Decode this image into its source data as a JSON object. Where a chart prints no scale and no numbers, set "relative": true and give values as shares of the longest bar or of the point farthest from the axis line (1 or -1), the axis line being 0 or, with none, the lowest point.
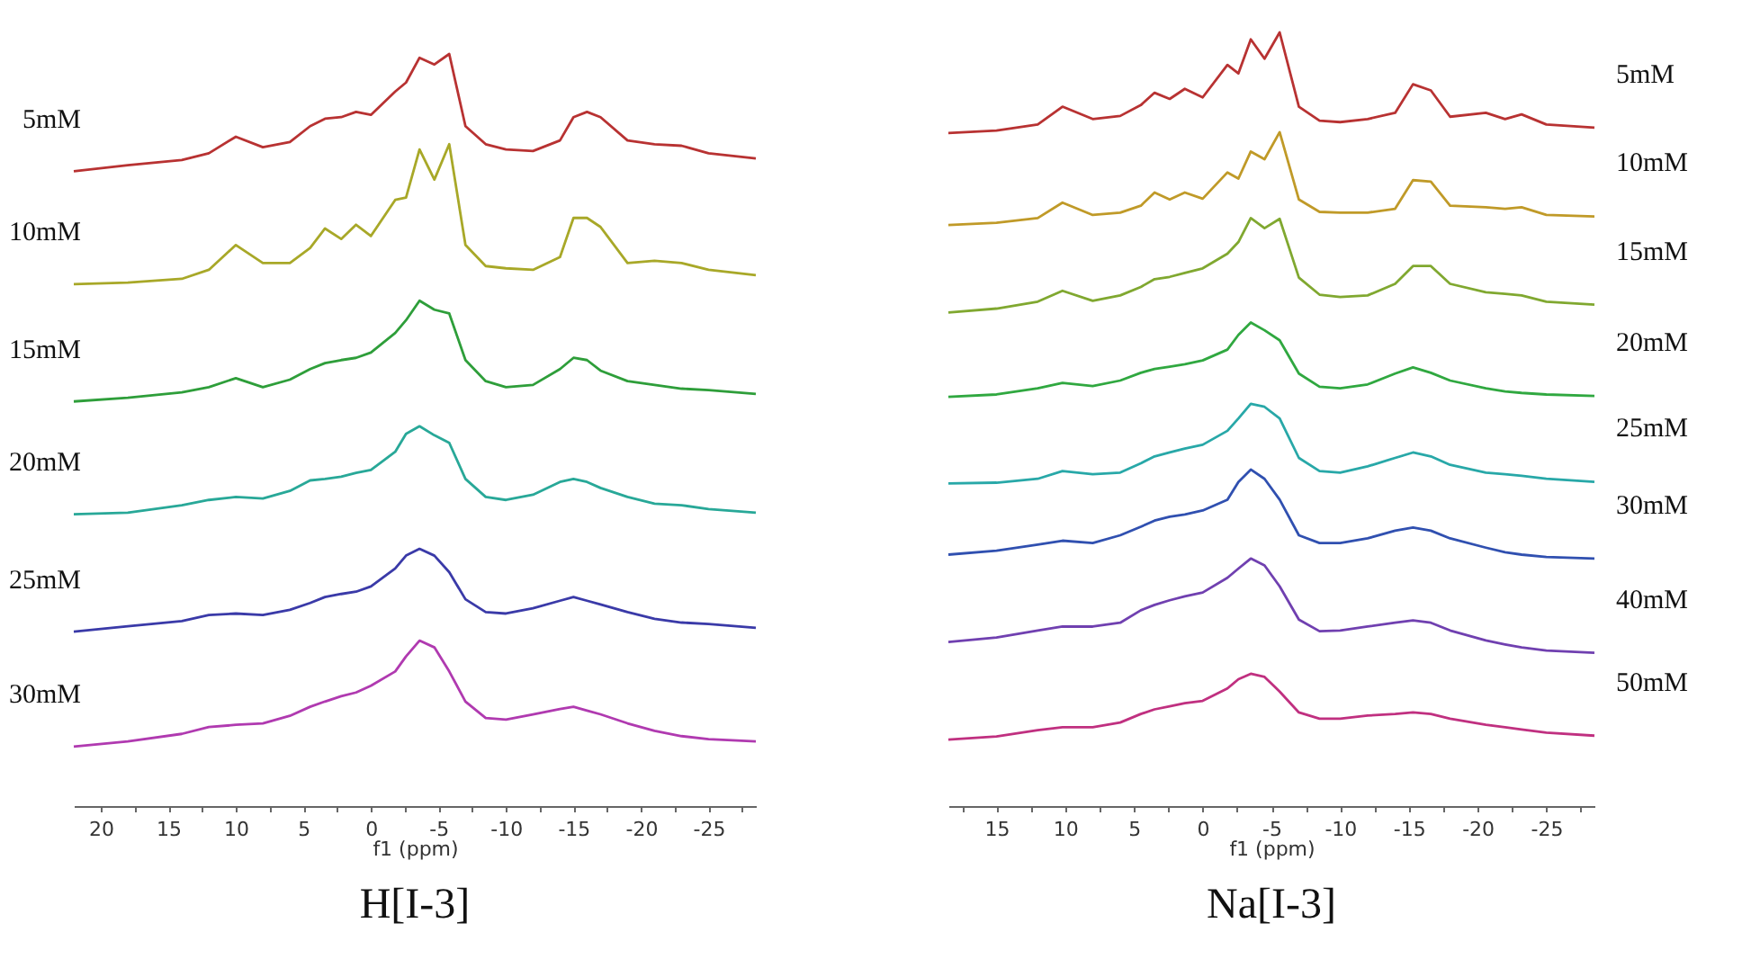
{
  "chart_data": [
    {
      "type": "line",
      "title": "H[I-3]",
      "xlabel": "f1 (ppm)",
      "relative": true,
      "xlim": [
        22,
        -28.5
      ],
      "xticks": [
        {
          "value": 17.5,
          "label": null
        },
        {
          "value": 12.5,
          "label": null
        },
        {
          "value": 7.5,
          "label": null
        },
        {
          "value": 2.5,
          "label": null
        },
        {
          "value": -2.5,
          "label": null
        },
        {
          "value": -7.5,
          "label": null
        },
        {
          "value": -12.5,
          "label": null
        },
        {
          "value": -17.5,
          "label": null
        },
        {
          "value": -22.5,
          "label": null
        },
        {
          "value": -27.5,
          "label": null
        },
        20,
        15,
        10,
        5,
        0,
        -5,
        -10,
        -15,
        -20,
        -25
      ],
      "x": [
        22,
        18,
        14,
        12,
        10,
        8,
        6,
        4.5,
        3.4,
        2.2,
        1.1,
        0,
        -1.8,
        -2.6,
        -3.6,
        -4.7,
        -5.8,
        -7,
        -8.5,
        -10,
        -12,
        -14,
        -15,
        -16,
        -17,
        -19,
        -21,
        -23,
        -25,
        -28.5
      ],
      "series": [
        {
          "name": "5mM",
          "color": "#b83232",
          "values": [
            0.844,
            0.852,
            0.859,
            0.868,
            0.89,
            0.876,
            0.883,
            0.904,
            0.914,
            0.916,
            0.923,
            0.919,
            0.95,
            0.962,
            0.995,
            0.986,
            1,
            0.904,
            0.88,
            0.873,
            0.871,
            0.885,
            0.916,
            0.923,
            0.916,
            0.885,
            0.88,
            0.878,
            0.868,
            0.861
          ]
        },
        {
          "name": "10mM",
          "color": "#a8a828",
          "values": [
            0.694,
            0.696,
            0.701,
            0.713,
            0.746,
            0.722,
            0.722,
            0.742,
            0.768,
            0.754,
            0.773,
            0.758,
            0.806,
            0.809,
            0.873,
            0.833,
            0.88,
            0.746,
            0.718,
            0.715,
            0.713,
            0.73,
            0.782,
            0.782,
            0.77,
            0.722,
            0.725,
            0.722,
            0.713,
            0.706
          ]
        },
        {
          "name": "15mM",
          "color": "#2e9e3a",
          "values": [
            0.538,
            0.543,
            0.55,
            0.557,
            0.569,
            0.557,
            0.567,
            0.581,
            0.589,
            0.593,
            0.596,
            0.603,
            0.629,
            0.646,
            0.672,
            0.66,
            0.655,
            0.593,
            0.565,
            0.557,
            0.56,
            0.581,
            0.596,
            0.593,
            0.579,
            0.565,
            0.56,
            0.555,
            0.553,
            0.548
          ]
        },
        {
          "name": "20mM",
          "color": "#28a898",
          "values": [
            0.388,
            0.39,
            0.4,
            0.407,
            0.411,
            0.409,
            0.419,
            0.433,
            0.435,
            0.438,
            0.443,
            0.447,
            0.471,
            0.495,
            0.505,
            0.493,
            0.483,
            0.435,
            0.411,
            0.407,
            0.414,
            0.431,
            0.435,
            0.431,
            0.423,
            0.411,
            0.402,
            0.4,
            0.395,
            0.39
          ]
        },
        {
          "name": "25mM",
          "color": "#3a3aa8",
          "values": [
            0.232,
            0.239,
            0.246,
            0.254,
            0.256,
            0.254,
            0.261,
            0.27,
            0.278,
            0.282,
            0.285,
            0.292,
            0.316,
            0.333,
            0.342,
            0.333,
            0.311,
            0.275,
            0.258,
            0.256,
            0.263,
            0.273,
            0.278,
            0.273,
            0.268,
            0.258,
            0.249,
            0.244,
            0.242,
            0.237
          ]
        },
        {
          "name": "30mM",
          "color": "#b03ab0",
          "values": [
            0.079,
            0.086,
            0.096,
            0.105,
            0.108,
            0.11,
            0.12,
            0.132,
            0.139,
            0.146,
            0.151,
            0.16,
            0.179,
            0.199,
            0.22,
            0.211,
            0.179,
            0.139,
            0.117,
            0.115,
            0.122,
            0.129,
            0.132,
            0.127,
            0.122,
            0.11,
            0.1,
            0.093,
            0.089,
            0.086
          ]
        }
      ]
    },
    {
      "type": "line",
      "title": "Na[I-3]",
      "xlabel": "f1 (ppm)",
      "relative": true,
      "xlim": [
        18.5,
        -28.5
      ],
      "xticks": [
        {
          "value": 17.5,
          "label": null
        },
        {
          "value": 12.5,
          "label": null
        },
        {
          "value": 7.5,
          "label": null
        },
        {
          "value": 2.5,
          "label": null
        },
        {
          "value": -2.5,
          "label": null
        },
        {
          "value": -7.5,
          "label": null
        },
        {
          "value": -12.5,
          "label": null
        },
        {
          "value": -17.5,
          "label": null
        },
        {
          "value": -22.5,
          "label": null
        },
        {
          "value": -27.5,
          "label": null
        },
        15,
        10,
        5,
        0,
        -5,
        -10,
        -15,
        -20,
        -25
      ],
      "x": [
        18.5,
        15,
        12,
        10.2,
        8,
        6,
        4.5,
        3.5,
        2.4,
        1.3,
        0,
        -1.8,
        -2.6,
        -3.5,
        -4.5,
        -5.6,
        -7,
        -8.5,
        -10,
        -12,
        -14,
        -15.3,
        -16.6,
        -18,
        -20.6,
        -22,
        -23.2,
        -25,
        -28.5
      ],
      "series": [
        {
          "name": "5mM",
          "color": "#b83232",
          "values": [
            0.87,
            0.873,
            0.881,
            0.904,
            0.888,
            0.892,
            0.906,
            0.922,
            0.914,
            0.927,
            0.916,
            0.958,
            0.947,
            0.991,
            0.966,
            1,
            0.904,
            0.886,
            0.884,
            0.888,
            0.896,
            0.933,
            0.925,
            0.891,
            0.896,
            0.888,
            0.894,
            0.881,
            0.877
          ]
        },
        {
          "name": "10mM",
          "color": "#c09a28",
          "values": [
            0.751,
            0.754,
            0.76,
            0.78,
            0.764,
            0.767,
            0.776,
            0.793,
            0.784,
            0.793,
            0.785,
            0.819,
            0.811,
            0.846,
            0.836,
            0.871,
            0.784,
            0.768,
            0.767,
            0.767,
            0.772,
            0.809,
            0.807,
            0.776,
            0.774,
            0.772,
            0.774,
            0.764,
            0.762
          ]
        },
        {
          "name": "15mM",
          "color": "#80a830",
          "values": [
            0.638,
            0.643,
            0.652,
            0.666,
            0.653,
            0.66,
            0.671,
            0.681,
            0.684,
            0.689,
            0.695,
            0.714,
            0.729,
            0.76,
            0.747,
            0.759,
            0.683,
            0.661,
            0.658,
            0.66,
            0.675,
            0.698,
            0.698,
            0.675,
            0.664,
            0.662,
            0.66,
            0.652,
            0.648
          ]
        },
        {
          "name": "20mM",
          "color": "#30a840",
          "values": [
            0.529,
            0.532,
            0.54,
            0.547,
            0.543,
            0.55,
            0.56,
            0.565,
            0.568,
            0.571,
            0.576,
            0.59,
            0.609,
            0.625,
            0.615,
            0.602,
            0.559,
            0.542,
            0.54,
            0.545,
            0.559,
            0.567,
            0.56,
            0.55,
            0.54,
            0.536,
            0.534,
            0.532,
            0.53
          ]
        },
        {
          "name": "25mM",
          "color": "#28a8a8",
          "values": [
            0.417,
            0.418,
            0.423,
            0.433,
            0.429,
            0.431,
            0.443,
            0.452,
            0.457,
            0.462,
            0.467,
            0.485,
            0.501,
            0.52,
            0.516,
            0.501,
            0.45,
            0.433,
            0.431,
            0.439,
            0.45,
            0.457,
            0.452,
            0.441,
            0.431,
            0.429,
            0.427,
            0.423,
            0.419
          ]
        },
        {
          "name": "30mM",
          "color": "#3050b0",
          "values": [
            0.325,
            0.33,
            0.338,
            0.343,
            0.34,
            0.35,
            0.361,
            0.369,
            0.374,
            0.377,
            0.382,
            0.396,
            0.419,
            0.435,
            0.423,
            0.396,
            0.35,
            0.34,
            0.34,
            0.346,
            0.356,
            0.36,
            0.356,
            0.346,
            0.334,
            0.328,
            0.325,
            0.322,
            0.32
          ]
        },
        {
          "name": "40mM",
          "color": "#7040b0",
          "values": [
            0.212,
            0.218,
            0.227,
            0.232,
            0.232,
            0.237,
            0.253,
            0.26,
            0.266,
            0.271,
            0.276,
            0.295,
            0.307,
            0.32,
            0.311,
            0.284,
            0.241,
            0.226,
            0.227,
            0.232,
            0.237,
            0.24,
            0.237,
            0.227,
            0.214,
            0.209,
            0.205,
            0.201,
            0.198
          ]
        },
        {
          "name": "50mM",
          "color": "#c03080",
          "values": [
            0.086,
            0.09,
            0.098,
            0.102,
            0.102,
            0.108,
            0.119,
            0.125,
            0.129,
            0.133,
            0.136,
            0.152,
            0.164,
            0.171,
            0.167,
            0.148,
            0.121,
            0.113,
            0.113,
            0.117,
            0.119,
            0.121,
            0.119,
            0.113,
            0.105,
            0.102,
            0.099,
            0.095,
            0.091
          ]
        }
      ]
    }
  ]
}
